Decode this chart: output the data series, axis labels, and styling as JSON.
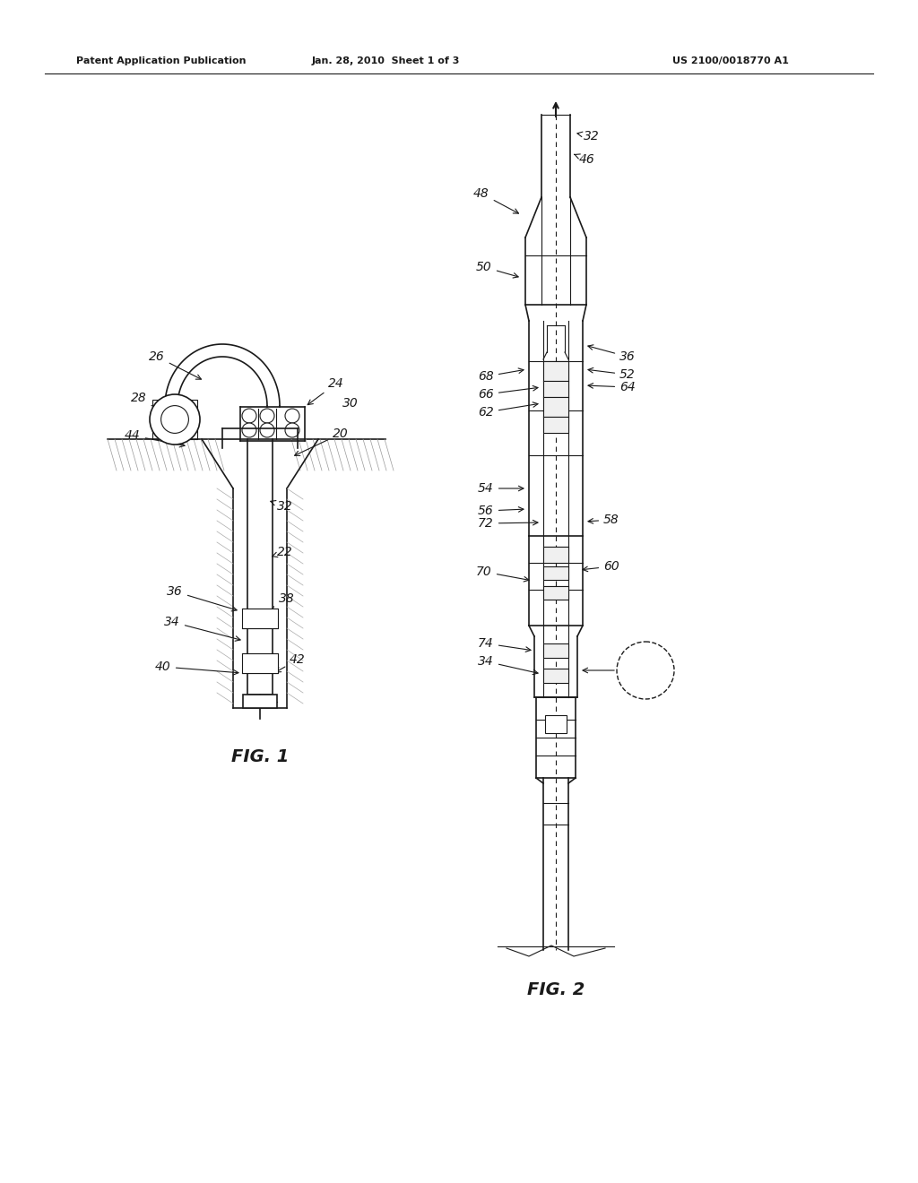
{
  "title_left": "Patent Application Publication",
  "title_mid": "Jan. 28, 2010  Sheet 1 of 3",
  "title_right": "US 2100/0018770 A1",
  "fig1_label": "FIG. 1",
  "fig2_label": "FIG. 2",
  "background_color": "#ffffff",
  "line_color": "#1a1a1a"
}
